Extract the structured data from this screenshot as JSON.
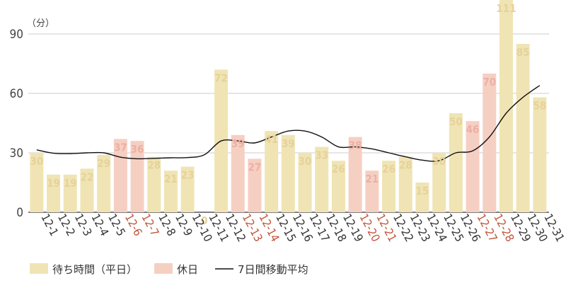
{
  "chart_data": {
    "type": "bar",
    "unit": "（分）",
    "ylim": [
      0,
      110
    ],
    "yticks": [
      0,
      30,
      60,
      90
    ],
    "grid": true,
    "legend_position": "bottom-left",
    "categories": [
      "12-1",
      "12-2",
      "12-3",
      "12-4",
      "12-5",
      "12-6",
      "12-7",
      "12-8",
      "12-9",
      "12-10",
      "12-11",
      "12-12",
      "12-13",
      "12-14",
      "12-15",
      "12-16",
      "12-17",
      "12-18",
      "12-19",
      "12-20",
      "12-21",
      "12-22",
      "12-23",
      "12-24",
      "12-25",
      "12-26",
      "12-27",
      "12-28",
      "12-29",
      "12-30",
      "12-31"
    ],
    "holidays": [
      "12-6",
      "12-7",
      "12-13",
      "12-14",
      "12-20",
      "12-21",
      "12-27",
      "12-28"
    ],
    "series": [
      {
        "name": "待ち時間（平日）",
        "values": [
          30,
          19,
          19,
          22,
          29,
          37,
          36,
          28,
          21,
          23,
          0,
          72,
          39,
          27,
          41,
          39,
          30,
          33,
          26,
          38,
          21,
          26,
          28,
          15,
          30,
          50,
          46,
          70,
          111,
          85,
          58
        ]
      },
      {
        "name": "7日間移動平均",
        "values": [
          31.5,
          29.8,
          29.6,
          30,
          30,
          27.8,
          27,
          27.2,
          27.5,
          27.6,
          29,
          36,
          36,
          35,
          38,
          41,
          41,
          38,
          33,
          33,
          32,
          30,
          28,
          26.3,
          26,
          30,
          31,
          38,
          50,
          58,
          64
        ]
      }
    ],
    "legend": [
      {
        "label": "待ち時間（平日）",
        "color": "#f0e4b4",
        "shape": "box"
      },
      {
        "label": "休日",
        "color": "#f6cfc3",
        "shape": "box"
      },
      {
        "label": "7日間移動平均",
        "color": "#111111",
        "shape": "line"
      }
    ],
    "colors": {
      "weekday_bar": "#f0e4b4",
      "holiday_bar": "#f6cfc3",
      "weekday_label": "#e6d29a",
      "holiday_label": "#eab1a4",
      "holiday_category": "#c0553a",
      "weekday_category": "#333333",
      "line": "#111111",
      "grid": "#cccccc",
      "axis": "#333333"
    }
  }
}
